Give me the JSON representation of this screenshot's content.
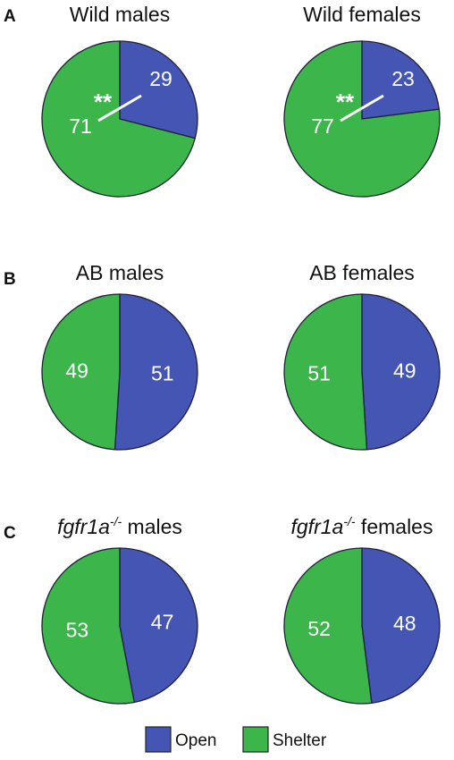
{
  "chart_data": [
    {
      "type": "pie",
      "panel": "A",
      "title": "Wild males",
      "categories": [
        "Open",
        "Shelter"
      ],
      "values": [
        29,
        71
      ],
      "annotation": "**",
      "colors": [
        "#4455b3",
        "#3cb54a"
      ]
    },
    {
      "type": "pie",
      "panel": "A",
      "title": "Wild females",
      "categories": [
        "Open",
        "Shelter"
      ],
      "values": [
        23,
        77
      ],
      "annotation": "**",
      "colors": [
        "#4455b3",
        "#3cb54a"
      ]
    },
    {
      "type": "pie",
      "panel": "B",
      "title": "AB males",
      "categories": [
        "Open",
        "Shelter"
      ],
      "values": [
        51,
        49
      ],
      "colors": [
        "#4455b3",
        "#3cb54a"
      ]
    },
    {
      "type": "pie",
      "panel": "B",
      "title": "AB females",
      "categories": [
        "Open",
        "Shelter"
      ],
      "values": [
        49,
        51
      ],
      "colors": [
        "#4455b3",
        "#3cb54a"
      ]
    },
    {
      "type": "pie",
      "panel": "C",
      "title_prefix": "fgfr1a",
      "title_sup": "-/-",
      "title": "males",
      "categories": [
        "Open",
        "Shelter"
      ],
      "values": [
        47,
        53
      ],
      "colors": [
        "#4455b3",
        "#3cb54a"
      ]
    },
    {
      "type": "pie",
      "panel": "C",
      "title_prefix": "fgfr1a",
      "title_sup": "-/-",
      "title": "females",
      "categories": [
        "Open",
        "Shelter"
      ],
      "values": [
        48,
        52
      ],
      "colors": [
        "#4455b3",
        "#3cb54a"
      ]
    }
  ],
  "panels": [
    "A",
    "B",
    "C"
  ],
  "legend": {
    "items": [
      {
        "label": "Open",
        "color": "#4455b3"
      },
      {
        "label": "Shelter",
        "color": "#3cb54a"
      }
    ]
  }
}
